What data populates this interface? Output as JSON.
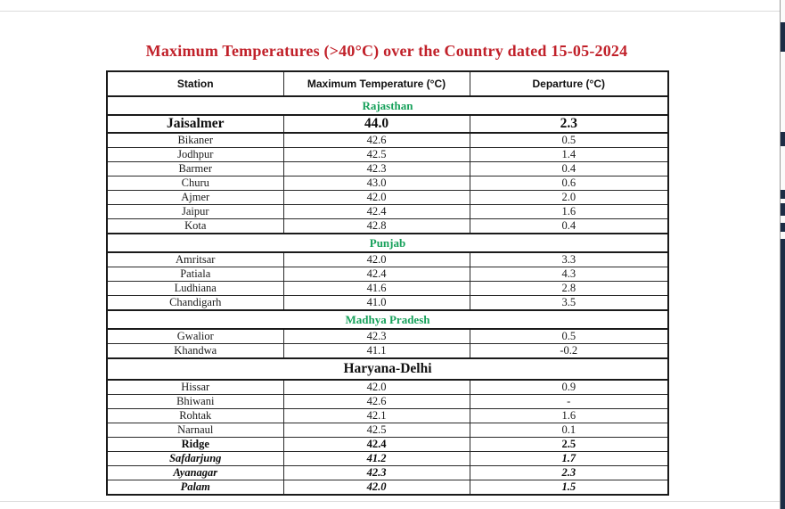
{
  "page": {
    "title": "Maximum Temperatures (>40°C) over the Country dated 15-05-2024"
  },
  "colors": {
    "title_red": "#c1212a",
    "section_green": "#17a15b",
    "section_black": "#111111"
  },
  "table": {
    "columns": [
      "Station",
      "Maximum Temperature (°C)",
      "Departure (°C)"
    ],
    "sections": [
      {
        "name": "Rajasthan",
        "color": "#17a15b",
        "size": "normal",
        "rows": [
          {
            "station": "Jaisalmer",
            "max_temp": "44.0",
            "departure": "2.3",
            "style": "bold-large"
          },
          {
            "station": "Bikaner",
            "max_temp": "42.6",
            "departure": "0.5",
            "style": "normal"
          },
          {
            "station": "Jodhpur",
            "max_temp": "42.5",
            "departure": "1.4",
            "style": "normal"
          },
          {
            "station": "Barmer",
            "max_temp": "42.3",
            "departure": "0.4",
            "style": "normal"
          },
          {
            "station": "Churu",
            "max_temp": "43.0",
            "departure": "0.6",
            "style": "normal"
          },
          {
            "station": "Ajmer",
            "max_temp": "42.0",
            "departure": "2.0",
            "style": "normal"
          },
          {
            "station": "Jaipur",
            "max_temp": "42.4",
            "departure": "1.6",
            "style": "normal"
          },
          {
            "station": "Kota",
            "max_temp": "42.8",
            "departure": "0.4",
            "style": "normal"
          }
        ]
      },
      {
        "name": "Punjab",
        "color": "#17a15b",
        "size": "normal",
        "rows": [
          {
            "station": "Amritsar",
            "max_temp": "42.0",
            "departure": "3.3",
            "style": "normal"
          },
          {
            "station": "Patiala",
            "max_temp": "42.4",
            "departure": "4.3",
            "style": "normal"
          },
          {
            "station": "Ludhiana",
            "max_temp": "41.6",
            "departure": "2.8",
            "style": "normal"
          },
          {
            "station": "Chandigarh",
            "max_temp": "41.0",
            "departure": "3.5",
            "style": "normal"
          }
        ]
      },
      {
        "name": "Madhya Pradesh",
        "color": "#17a15b",
        "size": "normal",
        "rows": [
          {
            "station": "Gwalior",
            "max_temp": "42.3",
            "departure": "0.5",
            "style": "normal"
          },
          {
            "station": "Khandwa",
            "max_temp": "41.1",
            "departure": "-0.2",
            "style": "normal"
          }
        ]
      },
      {
        "name": "Haryana-Delhi",
        "color": "#111111",
        "size": "large",
        "rows": [
          {
            "station": "Hissar",
            "max_temp": "42.0",
            "departure": "0.9",
            "style": "normal"
          },
          {
            "station": "Bhiwani",
            "max_temp": "42.6",
            "departure": "-",
            "style": "normal"
          },
          {
            "station": "Rohtak",
            "max_temp": "42.1",
            "departure": "1.6",
            "style": "normal"
          },
          {
            "station": "Narnaul",
            "max_temp": "42.5",
            "departure": "0.1",
            "style": "normal"
          },
          {
            "station": "Ridge",
            "max_temp": "42.4",
            "departure": "2.5",
            "style": "bold"
          },
          {
            "station": "Safdarjung",
            "max_temp": "41.2",
            "departure": "1.7",
            "style": "bold-italic"
          },
          {
            "station": "Ayanagar",
            "max_temp": "42.3",
            "departure": "2.3",
            "style": "bold-italic"
          },
          {
            "station": "Palam",
            "max_temp": "42.0",
            "departure": "1.5",
            "style": "bold-italic"
          }
        ]
      }
    ]
  }
}
